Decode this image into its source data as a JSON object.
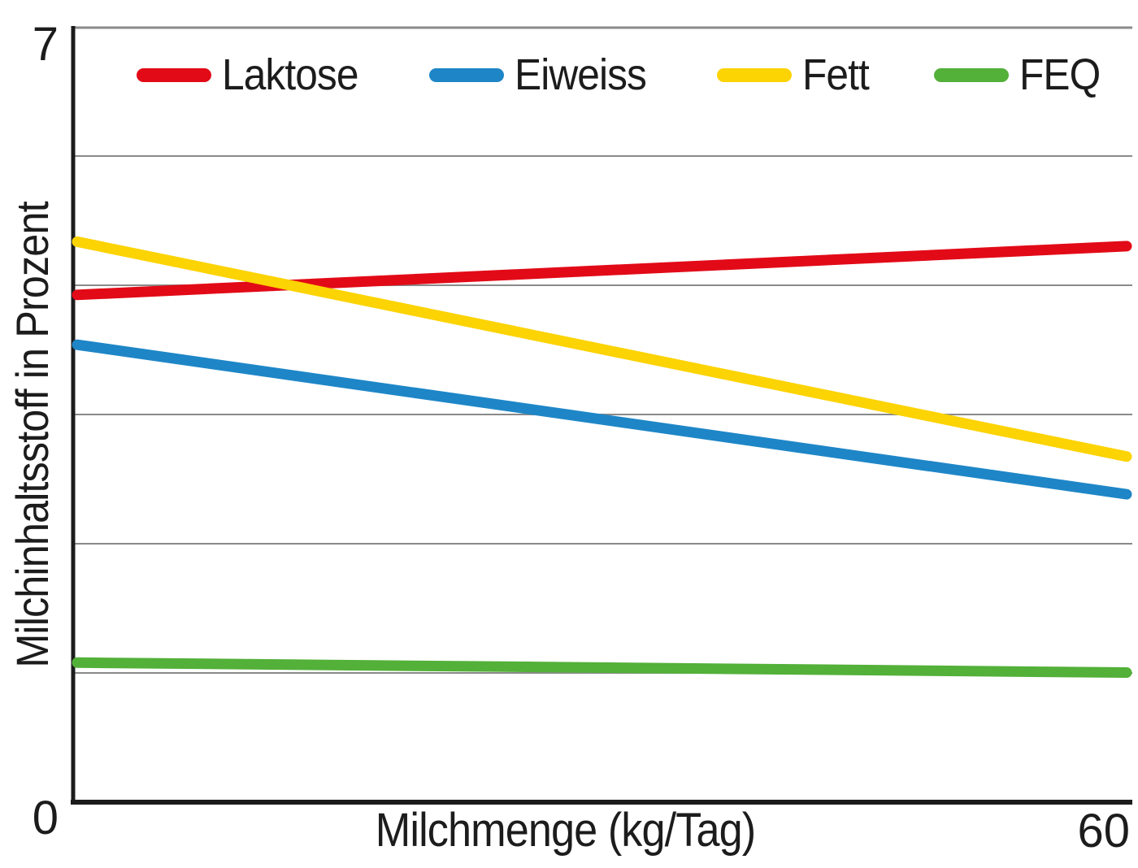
{
  "chart_data": {
    "type": "line",
    "title": "",
    "xlabel": "Milchmenge (kg/Tag)",
    "ylabel": "Milchinhaltsstoff in Prozent",
    "xlim": [
      0,
      60
    ],
    "ylim": [
      0,
      7
    ],
    "ticks": {
      "y_max": "7",
      "origin": "0",
      "x_max": "60"
    },
    "x": [
      0,
      60
    ],
    "series": [
      {
        "name": "Laktose",
        "color": "#e20a17",
        "values": [
          4.58,
          5.02
        ]
      },
      {
        "name": "Eiweiss",
        "color": "#1e86c7",
        "values": [
          4.13,
          2.78
        ]
      },
      {
        "name": "Fett",
        "color": "#fcd303",
        "values": [
          5.06,
          3.12
        ]
      },
      {
        "name": "FEQ",
        "color": "#53b039",
        "values": [
          1.26,
          1.17
        ]
      }
    ],
    "gridline_values": [
      5.833,
      4.667,
      3.5,
      2.333,
      1.167
    ],
    "legend_position": "top-inside",
    "grid_on": true,
    "grid_color": "#8a8a8a",
    "axis_color": "#1c1c1c",
    "background_color": "#ffffff",
    "line_style": "straight, thick, rounded caps"
  }
}
